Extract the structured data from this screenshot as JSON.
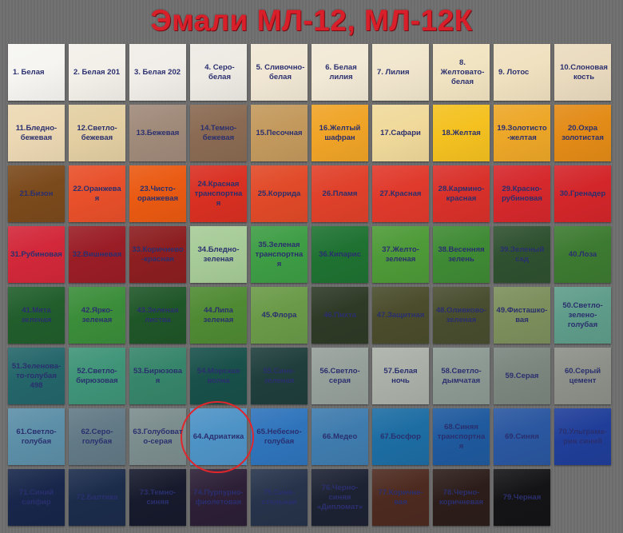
{
  "title": "Эмали МЛ-12, МЛ-12К",
  "swatches": [
    {
      "label": "1.  Белая",
      "color": "#f6f5f2"
    },
    {
      "label": "2.  Белая 201",
      "color": "#f3efe9"
    },
    {
      "label": "3.  Белая 202",
      "color": "#f1ede8"
    },
    {
      "label": "4.  Серо-белая",
      "color": "#eeeae4"
    },
    {
      "label": "5.  Сливочно-белая",
      "color": "#f1e7d4"
    },
    {
      "label": "6.  Белая лилия",
      "color": "#f2e9d6"
    },
    {
      "label": "7.  Лилия",
      "color": "#f1e6cd"
    },
    {
      "label": "8.  Желтовато-белая",
      "color": "#f1e4c2"
    },
    {
      "label": "9.  Лотос",
      "color": "#f0e1c0"
    },
    {
      "label": "10.Слоновая кость",
      "color": "#eadbbf"
    },
    {
      "label": "11.Бледно-бежевая",
      "color": "#ecd8b3"
    },
    {
      "label": "12.Светло-бежевая",
      "color": "#e3cfa2"
    },
    {
      "label": "13.Бежевая",
      "color": "#a08a7a"
    },
    {
      "label": "14.Темно-бежевая",
      "color": "#8a6a52"
    },
    {
      "label": "15.Песочная",
      "color": "#c3995d"
    },
    {
      "label": "16.Желтый шафран",
      "color": "#f0a427"
    },
    {
      "label": "17.Сафари",
      "color": "#f0d99a"
    },
    {
      "label": "18.Желтая",
      "color": "#f4c120"
    },
    {
      "label": "19.Золотисто-желтая",
      "color": "#eda728"
    },
    {
      "label": "20.Охра золотистая",
      "color": "#e38b17"
    },
    {
      "label": "21.Бизон",
      "color": "#7b4a1c"
    },
    {
      "label": "22.Оранжевая",
      "color": "#e8502a"
    },
    {
      "label": "23.Чисто-оранжевая",
      "color": "#ea5a12"
    },
    {
      "label": "24.Красная транспортная",
      "color": "#d93022"
    },
    {
      "label": "25.Коррида",
      "color": "#e14a28"
    },
    {
      "label": "26.Пламя",
      "color": "#e0412a"
    },
    {
      "label": "27.Красная",
      "color": "#e03a2c"
    },
    {
      "label": "28.Кармино-красная",
      "color": "#d9312a"
    },
    {
      "label": "29.Красно-рубиновая",
      "color": "#d5282c"
    },
    {
      "label": "30.Гренадер",
      "color": "#d3262a"
    },
    {
      "label": "31.Рубиновая",
      "color": "#d2283a"
    },
    {
      "label": "32.Вишневая",
      "color": "#9a1d26"
    },
    {
      "label": "33.Коричнево-красная",
      "color": "#8c1e20"
    },
    {
      "label": "34.Бледно-зеленая",
      "color": "#a7cb98"
    },
    {
      "label": "35.Зеленая транспортная",
      "color": "#3e9d45"
    },
    {
      "label": "36.Кипарис",
      "color": "#1f7232"
    },
    {
      "label": "37.Желто-зеленая",
      "color": "#4e9a38"
    },
    {
      "label": "38.Весенняя зелень",
      "color": "#3f8a34"
    },
    {
      "label": "39.Зеленый сад",
      "color": "#2f5130"
    },
    {
      "label": "40.Лоза",
      "color": "#3d7a31"
    },
    {
      "label": "41.Мята зеленая",
      "color": "#215e2c"
    },
    {
      "label": "42.Ярко-зеленая",
      "color": "#3b8d3a"
    },
    {
      "label": "43.Зеленая листва",
      "color": "#1f5628"
    },
    {
      "label": "44.Липа зеленая",
      "color": "#4f8a33"
    },
    {
      "label": "45.Флора",
      "color": "#6a9a48"
    },
    {
      "label": "46.Пихта",
      "color": "#2e3a26"
    },
    {
      "label": "47.Защитная",
      "color": "#4a4c2c"
    },
    {
      "label": "48.Оливково-зеленая",
      "color": "#494d2f"
    },
    {
      "label": "49.Фисташко-вая",
      "color": "#7c8f5c"
    },
    {
      "label": "50.Светло-зелено-голубая",
      "color": "#5f9c8a"
    },
    {
      "label": "51.Зеленова-то-голубая 498",
      "color": "#24666a"
    },
    {
      "label": "52.Светло-бирюзовая",
      "color": "#3f9478"
    },
    {
      "label": "53.Бирюзовая",
      "color": "#36856a"
    },
    {
      "label": "54.Морская волна",
      "color": "#19504a"
    },
    {
      "label": "55.Сине-зеленая",
      "color": "#1f3e3c"
    },
    {
      "label": "56.Светло-серая",
      "color": "#96a09a"
    },
    {
      "label": "57.Белая ночь",
      "color": "#aab0a7"
    },
    {
      "label": "58.Светло-дымчатая",
      "color": "#8c9993"
    },
    {
      "label": "59.Серая",
      "color": "#7b867f"
    },
    {
      "label": "60.Серый цемент",
      "color": "#8c9088"
    },
    {
      "label": "61.Светло-голубая",
      "color": "#5c8fa8"
    },
    {
      "label": "62.Серо-голубая",
      "color": "#627a86"
    },
    {
      "label": "63.Голубовато-серая",
      "color": "#7c8d8e"
    },
    {
      "label": "64.Адриатика",
      "color": "#4e93c6"
    },
    {
      "label": "65.Небесно-голубая",
      "color": "#2f74bb"
    },
    {
      "label": "66.Медео",
      "color": "#3f7cae"
    },
    {
      "label": "67.Босфор",
      "color": "#1d6da3"
    },
    {
      "label": "68.Синяя транспортная",
      "color": "#1f5a9e"
    },
    {
      "label": "69.Синяя",
      "color": "#2a57a0"
    },
    {
      "label": "70.Ультрама-рин синий",
      "color": "#203e99"
    },
    {
      "label": "71.Синий сапфир",
      "color": "#17264a"
    },
    {
      "label": "72.Балтика",
      "color": "#1b2c4b"
    },
    {
      "label": "73.Темно-синяя",
      "color": "#161a2c"
    },
    {
      "label": "74.Пурпурно-фиолетовая",
      "color": "#2c1f36"
    },
    {
      "label": "75.Сине-стальная",
      "color": "#26334a"
    },
    {
      "label": "76.Черно-синяя «Дипломат»",
      "color": "#1d2233"
    },
    {
      "label": "77.Коричне-вая",
      "color": "#4d2a20"
    },
    {
      "label": "78.Черно-коричневая",
      "color": "#2c1d1a"
    },
    {
      "label": "79.Черная",
      "color": "#141416"
    }
  ],
  "highlight_color": "#e0262c"
}
